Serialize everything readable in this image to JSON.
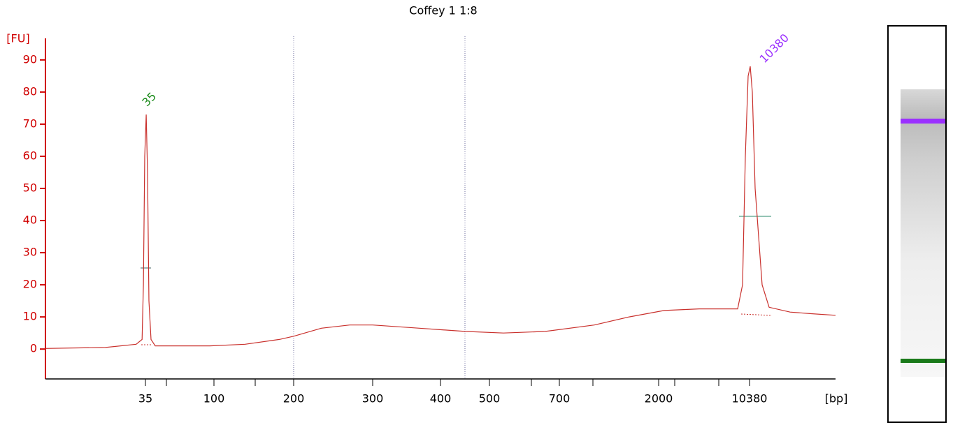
{
  "chart_data": {
    "type": "line",
    "title": "Coffey 1 1:8",
    "y_label": "[FU]",
    "x_label": "[bp]",
    "x": [
      20,
      29,
      33.6,
      34.5,
      34.7,
      34.9,
      35.7,
      37,
      38.3,
      40.3,
      44.3,
      96,
      139,
      182,
      200,
      235,
      271,
      300,
      369,
      450,
      540,
      660,
      1158,
      1615,
      2516,
      5739,
      9284,
      9735,
      9993,
      10251,
      10434,
      10595,
      10810,
      11079,
      11349,
      11887,
      13502,
      15117,
      17000
    ],
    "series": [
      {
        "name": "Coffey 1 1:8",
        "color": "#c9302c",
        "values": [
          0.2,
          0.5,
          1.5,
          3,
          20,
          60,
          73,
          55,
          15,
          3,
          1,
          1,
          1.5,
          3,
          4,
          6.5,
          7.5,
          7.5,
          6.5,
          5.5,
          5,
          5.5,
          7.5,
          10,
          12,
          12.5,
          12.5,
          20,
          60,
          85,
          88,
          80,
          50,
          35,
          20,
          13,
          11.5,
          11,
          10.5
        ]
      }
    ],
    "xlim": [
      20,
      17000
    ],
    "xticks": [
      35,
      100,
      200,
      300,
      400,
      500,
      700,
      2000,
      10380
    ],
    "ylim": [
      -9.3,
      96.7
    ],
    "yticks": [
      0,
      10,
      20,
      30,
      40,
      50,
      60,
      70,
      80,
      90
    ],
    "axis_color": "#d00000",
    "annotations": [
      {
        "text": "35",
        "color": "#1a8a1a"
      },
      {
        "text": "10380",
        "color": "#9b30ff"
      }
    ]
  }
}
